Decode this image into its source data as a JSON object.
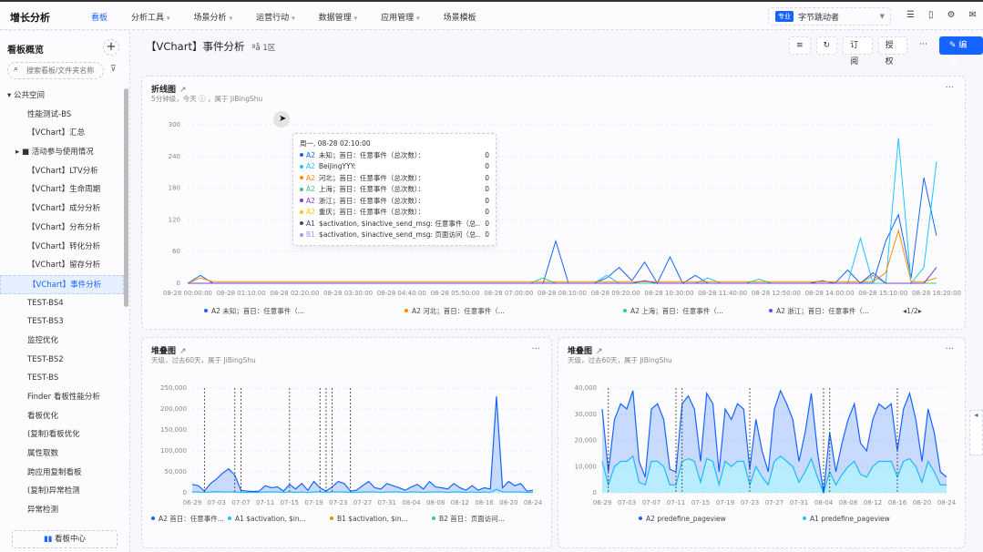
{
  "app": {
    "title": "增长分析",
    "nav": [
      {
        "label": "看板",
        "active": true
      },
      {
        "label": "分析工具",
        "caret": true
      },
      {
        "label": "场景分析",
        "caret": true
      },
      {
        "label": "运营行动",
        "caret": true
      },
      {
        "label": "数据管理",
        "caret": true
      },
      {
        "label": "应用管理",
        "caret": true
      },
      {
        "label": "场景模板"
      }
    ],
    "project": {
      "tag": "专业",
      "name": "字节跳动者"
    },
    "accent": "#1664ff"
  },
  "sidebar": {
    "title": "看板概览",
    "add": "+",
    "search_placeholder": "搜索看板/文件夹名称",
    "items": [
      {
        "label": "▾  公共空间",
        "indent": 8
      },
      {
        "label": "性能测试-BS",
        "indent": 30
      },
      {
        "label": "【VChart】汇总",
        "indent": 30
      },
      {
        "label": "▸  ■ 活动参与使用情况",
        "indent": 17
      },
      {
        "label": "【VChart】LTV分析",
        "indent": 30
      },
      {
        "label": "【VChart】生命周期",
        "indent": 30
      },
      {
        "label": "【VChart】成分分析",
        "indent": 30
      },
      {
        "label": "【VChart】分布分析",
        "indent": 30
      },
      {
        "label": "【VChart】转化分析",
        "indent": 30
      },
      {
        "label": "【VChart】留存分析",
        "indent": 30
      },
      {
        "label": "【VChart】事件分析",
        "indent": 30,
        "selected": true
      },
      {
        "label": "TEST-BS4",
        "indent": 30
      },
      {
        "label": "TEST-BS3",
        "indent": 30
      },
      {
        "label": "监控优化",
        "indent": 30
      },
      {
        "label": "TEST-BS2",
        "indent": 30
      },
      {
        "label": "TEST-BS",
        "indent": 30
      },
      {
        "label": "Finder 看板性能分析",
        "indent": 30
      },
      {
        "label": "看板优化",
        "indent": 30
      },
      {
        "label": "(复制)看板优化",
        "indent": 30
      },
      {
        "label": "属性取数",
        "indent": 30
      },
      {
        "label": "跨应用复制看板",
        "indent": 30
      },
      {
        "label": "(复制)异常检测",
        "indent": 30
      },
      {
        "label": "异常检测",
        "indent": 30
      }
    ],
    "footer": "看板中心"
  },
  "page": {
    "title": "【VChart】事件分析",
    "sub": "ºå 1区",
    "actions": {
      "subscribe": "订阅",
      "authorize": "授权",
      "more": "···",
      "edit": "✎ 编辑"
    }
  },
  "cards": [
    {
      "title": "折线图",
      "subtitle": "5分钟级，今天 ⓘ ，属于 JiBingShu",
      "more": "···"
    },
    {
      "title": "堆叠图",
      "subtitle": "天级，过去60天，属于 JiBingShu",
      "more": "···"
    },
    {
      "title": "堆叠图",
      "subtitle": "天级，过去60天，属于 JiBingShu",
      "more": "···"
    }
  ],
  "tooltip": {
    "title": "周一, 08-28 02:10:00",
    "rows": [
      {
        "tag": "A2",
        "name": "未知；首日：任意事件（总次数）：",
        "value": "0",
        "color": "#1664ff"
      },
      {
        "tag": "A2",
        "name": "BeiJingYYY:",
        "value": "0",
        "color": "#1ac6ff"
      },
      {
        "tag": "A2",
        "name": "河北；首日：任意事件（总次数）：",
        "value": "0",
        "color": "#ff8a00"
      },
      {
        "tag": "A2",
        "name": "上海；首日：任意事件（总次数）：",
        "value": "0",
        "color": "#3cc780"
      },
      {
        "tag": "A2",
        "name": "浙江；首日：任意事件（总次数）：",
        "value": "0",
        "color": "#7442d4"
      },
      {
        "tag": "A2",
        "name": "重庆；首日：任意事件（总次数）：",
        "value": "0",
        "color": "#ffc400"
      },
      {
        "tag": "A1",
        "name": "$activation, $inactive_send_msg: 任意事件（总...",
        "value": "0",
        "color": "#304d77"
      },
      {
        "tag": "B1",
        "name": "$activation, $inactive_send_msg: 页面访问（总...",
        "value": "0",
        "color": "#b48dff"
      }
    ]
  },
  "chart_data": [
    {
      "type": "line",
      "ylim": [
        0,
        300
      ],
      "yticks": [
        0,
        60,
        120,
        180,
        240,
        300
      ],
      "grid": true,
      "xticks": [
        "08-28 00:00:00",
        "08-28 01:10:00",
        "08-28 02:20:00",
        "08-28 03:30:00",
        "08-28 04:40:00",
        "08-28 05:50:00",
        "08-28 07:00:00",
        "08-28 08:10:00",
        "08-28 09:20:00",
        "08-28 10:30:00",
        "08-28 11:40:00",
        "08-28 12:50:00",
        "08-28 14:00:00",
        "08-28 15:10:00",
        "08-28 16:20:00"
      ],
      "legend": {
        "items": [
          "A2 未知；首日：任意事件（...",
          "A2 河北；首日：任意事件（...",
          "A2 上海；首日：任意事件（...",
          "A2 浙江；首日：任意事件（..."
        ],
        "page": "1/2",
        "placement": "bottom"
      },
      "series": [
        {
          "name": "A2 未知；首日：任意事件（总次数）",
          "color": "#1664ff",
          "values": [
            0,
            15,
            0,
            0,
            0,
            0,
            0,
            0,
            0,
            0,
            0,
            0,
            0,
            0,
            0,
            0,
            0,
            0,
            0,
            0,
            0,
            0,
            0,
            0,
            0,
            0,
            0,
            0,
            0,
            80,
            0,
            0,
            0,
            10,
            30,
            5,
            40,
            0,
            50,
            0,
            15,
            0,
            0,
            0,
            0,
            0,
            0,
            0,
            0,
            0,
            5,
            0,
            25,
            0,
            0,
            80,
            130,
            10,
            200,
            90
          ]
        },
        {
          "name": "A2 BeiJingYYY",
          "color": "#1ac6ff",
          "values": [
            0,
            0,
            0,
            0,
            0,
            0,
            0,
            0,
            0,
            0,
            0,
            0,
            0,
            0,
            0,
            0,
            0,
            0,
            0,
            0,
            0,
            0,
            0,
            0,
            0,
            0,
            0,
            0,
            0,
            0,
            0,
            0,
            0,
            15,
            0,
            0,
            0,
            0,
            0,
            0,
            0,
            10,
            0,
            0,
            0,
            0,
            0,
            0,
            0,
            0,
            0,
            0,
            0,
            85,
            0,
            0,
            275,
            0,
            30,
            230
          ]
        },
        {
          "name": "A2 河北；首日：任意事件（总次数）",
          "color": "#ff8a00",
          "values": [
            0,
            10,
            3,
            3,
            3,
            3,
            3,
            3,
            3,
            3,
            3,
            3,
            3,
            3,
            3,
            3,
            3,
            3,
            3,
            3,
            3,
            3,
            3,
            3,
            3,
            3,
            3,
            3,
            3,
            3,
            3,
            3,
            3,
            3,
            3,
            3,
            3,
            3,
            3,
            3,
            3,
            3,
            3,
            3,
            3,
            3,
            3,
            3,
            3,
            3,
            3,
            3,
            3,
            3,
            3,
            20,
            100,
            3,
            3,
            10
          ]
        },
        {
          "name": "A2 上海；首日：任意事件（总次数）",
          "color": "#3cc780",
          "values": [
            0,
            0,
            0,
            0,
            0,
            0,
            0,
            0,
            0,
            0,
            0,
            0,
            0,
            0,
            0,
            0,
            0,
            0,
            0,
            0,
            0,
            0,
            0,
            0,
            0,
            0,
            0,
            0,
            10,
            0,
            0,
            0,
            0,
            0,
            0,
            0,
            0,
            0,
            0,
            0,
            0,
            0,
            0,
            0,
            0,
            8,
            0,
            0,
            0,
            0,
            0,
            0,
            0,
            0,
            15,
            0,
            0,
            0,
            0,
            0
          ]
        },
        {
          "name": "A2 浙江；首日：任意事件（总次数）",
          "color": "#7442d4",
          "values": [
            0,
            0,
            0,
            0,
            0,
            0,
            0,
            0,
            0,
            0,
            0,
            0,
            0,
            0,
            0,
            0,
            0,
            0,
            0,
            0,
            0,
            0,
            0,
            0,
            0,
            0,
            0,
            0,
            0,
            0,
            0,
            0,
            0,
            0,
            0,
            0,
            5,
            0,
            0,
            0,
            0,
            0,
            0,
            0,
            0,
            0,
            0,
            0,
            0,
            0,
            0,
            0,
            0,
            0,
            20,
            0,
            0,
            0,
            0,
            30
          ]
        }
      ]
    },
    {
      "type": "area",
      "stacked": true,
      "ylim": [
        0,
        250000
      ],
      "yticks": [
        "0",
        "50,000",
        "100,000",
        "150,000",
        "200,000",
        "250,000"
      ],
      "xticks": [
        "06-29",
        "07-03",
        "07-07",
        "07-11",
        "07-15",
        "07-19",
        "07-23",
        "07-27",
        "07-31",
        "08-04",
        "08-08",
        "08-12",
        "08-16",
        "08-20",
        "08-24"
      ],
      "markers": [
        2,
        7,
        8,
        16,
        21,
        22,
        23,
        26
      ],
      "legend": [
        "A2 首日：任意事件...",
        "A1 $activation, $in...",
        "B1 $activation, $in...",
        "B2 首日：页面访问..."
      ],
      "legend_colors": [
        "#1664ff",
        "#1ac6ff",
        "#ff8a00",
        "#3cc780"
      ],
      "series": [
        {
          "name": "A1 $activation, $in...",
          "color": "#1ac6ff",
          "values": [
            2000,
            2000,
            1000,
            2000,
            3000,
            2000,
            2000,
            2000,
            1000,
            1000,
            1000,
            1000,
            2000,
            2000,
            2000,
            1000,
            2000,
            1000,
            2000,
            1000,
            2000,
            2000,
            1000,
            2000,
            2000,
            2000,
            1000,
            1000,
            2000,
            2000,
            2000,
            1000,
            2000,
            2000,
            2000,
            1000,
            2000,
            2000,
            1000,
            2000,
            2000,
            2000,
            1000,
            2000,
            2000,
            1000,
            2000,
            1000,
            2000,
            1000,
            8000,
            2000,
            2000,
            2000,
            2000,
            1000,
            1000
          ]
        },
        {
          "name": "A2 首日：任意事件...",
          "color": "#1664ff",
          "values": [
            18000,
            15000,
            3000,
            20000,
            30000,
            45000,
            55000,
            40000,
            5000,
            3000,
            2000,
            3000,
            15000,
            10000,
            12000,
            3000,
            18000,
            8000,
            20000,
            5000,
            25000,
            10000,
            3000,
            12000,
            25000,
            20000,
            3000,
            5000,
            15000,
            25000,
            10000,
            8000,
            20000,
            15000,
            10000,
            5000,
            12000,
            18000,
            8000,
            25000,
            12000,
            10000,
            8000,
            20000,
            10000,
            5000,
            15000,
            5000,
            10000,
            8000,
            222000,
            10000,
            25000,
            15000,
            20000,
            3000,
            5000
          ]
        }
      ]
    },
    {
      "type": "area",
      "stacked": true,
      "ylim": [
        0,
        40000
      ],
      "yticks": [
        "0",
        "10,000",
        "20,000",
        "30,000",
        "40,000"
      ],
      "xticks": [
        "06-29",
        "07-03",
        "07-07",
        "07-11",
        "07-15",
        "07-19",
        "07-23",
        "07-27",
        "07-31",
        "08-04",
        "08-08",
        "08-12",
        "08-16",
        "08-20",
        "08-24"
      ],
      "markers": [
        1,
        12,
        13,
        24,
        36,
        37,
        48
      ],
      "legend": [
        "A2 predefine_pageview",
        "A1 predefine_pageview"
      ],
      "legend_colors": [
        "#1664ff",
        "#1ac6ff"
      ],
      "series": [
        {
          "name": "A1 predefine_pageview",
          "color": "#1ac6ff",
          "values": [
            12000,
            3000,
            10000,
            12000,
            12000,
            14000,
            4000,
            3000,
            12000,
            12000,
            10000,
            3000,
            3000,
            12000,
            13000,
            12000,
            4000,
            13000,
            12000,
            3000,
            12000,
            10000,
            12000,
            12000,
            3000,
            10000,
            6000,
            3000,
            12000,
            14000,
            12000,
            10000,
            4000,
            8000,
            13000,
            6000,
            0,
            8000,
            3000,
            7000,
            10000,
            12000,
            7000,
            6000,
            10000,
            12000,
            12000,
            12000,
            6000,
            12000,
            13000,
            10000,
            4000,
            12000,
            8000,
            3000,
            3000
          ]
        },
        {
          "name": "A2 predefine_pageview",
          "color": "#1664ff",
          "values": [
            20000,
            5000,
            18000,
            22000,
            20000,
            25000,
            8000,
            3000,
            20000,
            22000,
            18000,
            6000,
            5000,
            22000,
            24000,
            20000,
            8000,
            25000,
            22000,
            5000,
            20000,
            18000,
            22000,
            20000,
            6000,
            18000,
            10000,
            5000,
            20000,
            25000,
            22000,
            18000,
            8000,
            15000,
            25000,
            10000,
            0,
            15000,
            5000,
            12000,
            18000,
            22000,
            12000,
            10000,
            18000,
            22000,
            20000,
            22000,
            10000,
            20000,
            25000,
            18000,
            8000,
            20000,
            15000,
            5000,
            3000
          ]
        }
      ]
    }
  ]
}
